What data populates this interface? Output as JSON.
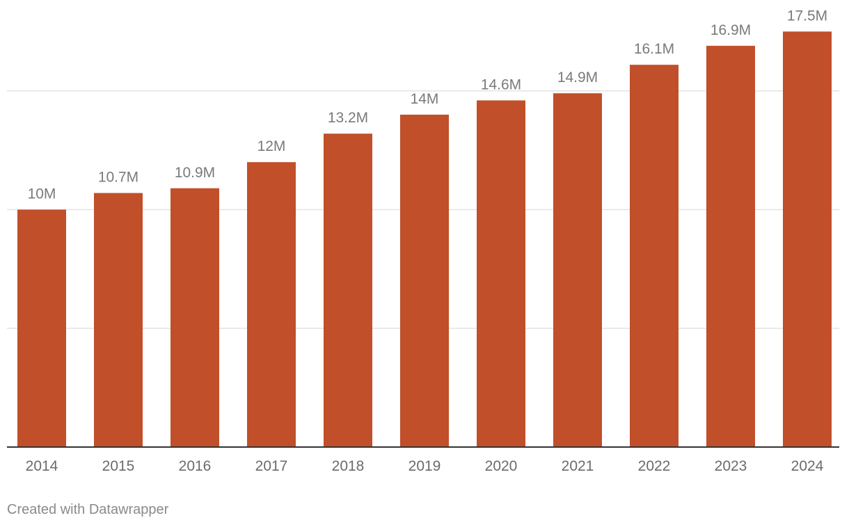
{
  "chart_data": {
    "type": "bar",
    "categories": [
      "2014",
      "2015",
      "2016",
      "2017",
      "2018",
      "2019",
      "2020",
      "2021",
      "2022",
      "2023",
      "2024"
    ],
    "values": [
      10,
      10.7,
      10.9,
      12,
      13.2,
      14,
      14.6,
      14.9,
      16.1,
      16.9,
      17.5
    ],
    "value_labels": [
      "10M",
      "10.7M",
      "10.9M",
      "12M",
      "13.2M",
      "14M",
      "14.6M",
      "14.9M",
      "16.1M",
      "16.9M",
      "17.5M"
    ],
    "title": "",
    "xlabel": "",
    "ylabel": "",
    "ylim": [
      0,
      18.8
    ],
    "grid": true,
    "gridlines": [
      5,
      10,
      15
    ],
    "legend": "none",
    "bar_color": "#c14f2a"
  },
  "footer": {
    "credit": "Created with Datawrapper"
  }
}
